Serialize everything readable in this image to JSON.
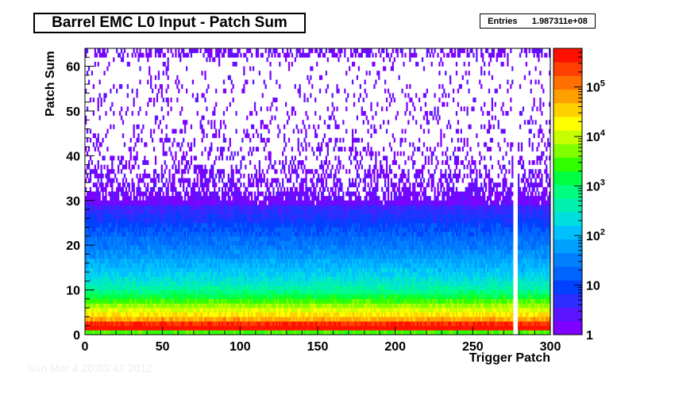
{
  "title": "Barrel EMC L0 Input - Patch Sum",
  "stats": {
    "label": "Entries",
    "value": "1.987311e+08"
  },
  "footer": "Sun Mar  4 20:03:42 2012",
  "chart_data": {
    "type": "heatmap",
    "xlabel": "Trigger Patch",
    "ylabel": "Patch Sum",
    "xlim": [
      0,
      300
    ],
    "ylim": [
      0,
      64
    ],
    "x_ticks": [
      0,
      50,
      100,
      150,
      200,
      250,
      300
    ],
    "y_ticks": [
      0,
      10,
      20,
      30,
      40,
      50,
      60
    ],
    "z_scale": "log",
    "zlim": [
      1,
      600000
    ],
    "z_tick_labels": [
      "1",
      "10",
      "10^2",
      "10^3",
      "10^4",
      "10^5"
    ],
    "z_tick_values": [
      1,
      10,
      100,
      1000,
      10000,
      100000
    ],
    "entries": 198731100,
    "patch_sum_profile": [
      {
        "patch_sum": 0,
        "counts": 3000
      },
      {
        "patch_sum": 1,
        "counts": 500000
      },
      {
        "patch_sum": 2,
        "counts": 300000
      },
      {
        "patch_sum": 3,
        "counts": 60000
      },
      {
        "patch_sum": 4,
        "counts": 25000
      },
      {
        "patch_sum": 5,
        "counts": 12000
      },
      {
        "patch_sum": 6,
        "counts": 6000
      },
      {
        "patch_sum": 7,
        "counts": 3000
      },
      {
        "patch_sum": 8,
        "counts": 1500
      },
      {
        "patch_sum": 9,
        "counts": 800
      },
      {
        "patch_sum": 10,
        "counts": 450
      },
      {
        "patch_sum": 12,
        "counts": 220
      },
      {
        "patch_sum": 14,
        "counts": 120
      },
      {
        "patch_sum": 16,
        "counts": 70
      },
      {
        "patch_sum": 18,
        "counts": 40
      },
      {
        "patch_sum": 20,
        "counts": 25
      },
      {
        "patch_sum": 22,
        "counts": 16
      },
      {
        "patch_sum": 24,
        "counts": 10
      },
      {
        "patch_sum": 26,
        "counts": 6
      },
      {
        "patch_sum": 28,
        "counts": 4
      },
      {
        "patch_sum": 30,
        "counts": 3
      },
      {
        "patch_sum": 32,
        "counts": 2
      },
      {
        "patch_sum": 35,
        "counts": 1.5
      },
      {
        "patch_sum": 40,
        "counts": 1
      },
      {
        "patch_sum": 63,
        "counts": 1
      }
    ],
    "empty_patches": [
      276,
      277,
      278
    ],
    "palette": [
      "#7f00ff",
      "#5a14ff",
      "#2d2dff",
      "#0040ff",
      "#0064ff",
      "#0080ff",
      "#00a0ff",
      "#00c0ff",
      "#00dede",
      "#00f0b0",
      "#00ff80",
      "#00ff40",
      "#30ff00",
      "#80ff00",
      "#c8ff00",
      "#ffff00",
      "#ffd000",
      "#ffa000",
      "#ff7000",
      "#ff4000",
      "#ff1000"
    ]
  }
}
